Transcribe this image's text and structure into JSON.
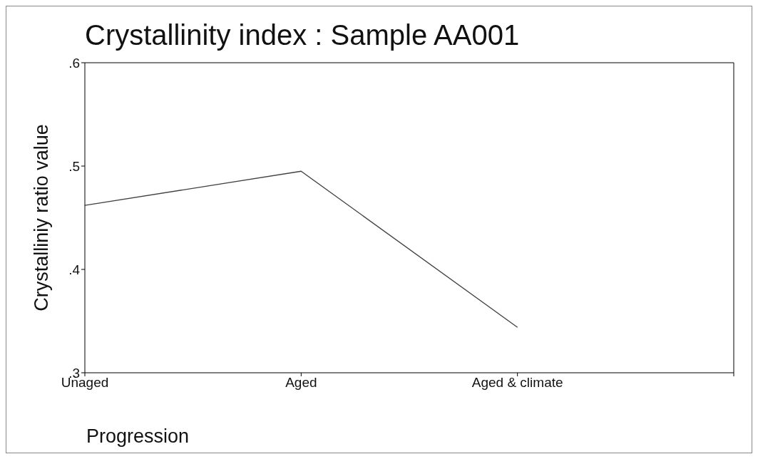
{
  "chart_data": {
    "type": "line",
    "title": "Crystallinity index : Sample AA001",
    "xlabel": "Progression",
    "ylabel": "Crystalliniy ratio value",
    "categories": [
      "Unaged",
      "Aged",
      "Aged & climate",
      null
    ],
    "series": [
      {
        "color": "#404040",
        "values": [
          0.462,
          0.495,
          0.344,
          null
        ]
      }
    ],
    "ylim": [
      0.3,
      0.6
    ],
    "yticks": [
      {
        "value": 0.3,
        "label": ".3"
      },
      {
        "value": 0.4,
        "label": ".4"
      },
      {
        "value": 0.5,
        "label": ".5"
      },
      {
        "value": 0.6,
        "label": ".6"
      }
    ],
    "grid": false
  }
}
